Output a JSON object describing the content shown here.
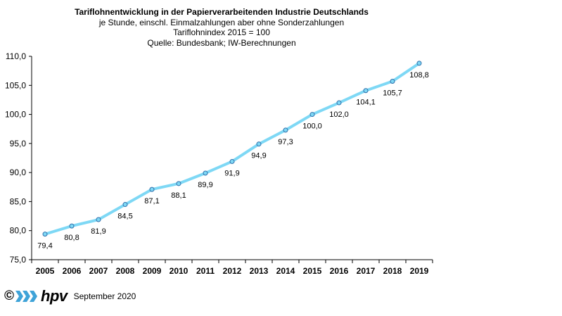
{
  "chart_data": {
    "type": "line",
    "title": "Tariflohnentwicklung in der Papierverarbeitenden Industrie Deutschlands",
    "subtitle_lines": [
      "je Stunde, einschl. Einmalzahlungen  aber ohne Sonderzahlungen",
      "Tariflohnindex  2015  = 100",
      "Quelle: Bundesbank; IW-Berechnungen"
    ],
    "categories": [
      "2005",
      "2006",
      "2007",
      "2008",
      "2009",
      "2010",
      "2011",
      "2012",
      "2013",
      "2014",
      "2015",
      "2016",
      "2017",
      "2018",
      "2019"
    ],
    "series": [
      {
        "name": "Tariflohnindex",
        "values": [
          79.4,
          80.8,
          81.9,
          84.5,
          87.1,
          88.1,
          89.9,
          91.9,
          94.9,
          97.3,
          100.0,
          102.0,
          104.1,
          105.7,
          108.8
        ],
        "labels": [
          "79,4",
          "80,8",
          "81,9",
          "84,5",
          "87,1",
          "88,1",
          "89,9",
          "91,9",
          "94,9",
          "97,3",
          "100,0",
          "102,0",
          "104,1",
          "105,7",
          "108,8"
        ]
      }
    ],
    "ylim": [
      75,
      110
    ],
    "yticks": [
      75,
      80,
      85,
      90,
      95,
      100,
      105,
      110
    ],
    "ytick_labels": [
      "75,0",
      "80,0",
      "85,0",
      "90,0",
      "95,0",
      "100,0",
      "105,0",
      "110,0"
    ],
    "xlabel": "",
    "ylabel": "",
    "grid": false,
    "line_color": "#7ed8f5",
    "marker_color": "#7ed8f5",
    "marker_edge": "#2f6eaa"
  },
  "footer": {
    "copyright": "©",
    "brand": "hpv",
    "date": "September 2020",
    "brand_color": "#3fa3d8"
  }
}
